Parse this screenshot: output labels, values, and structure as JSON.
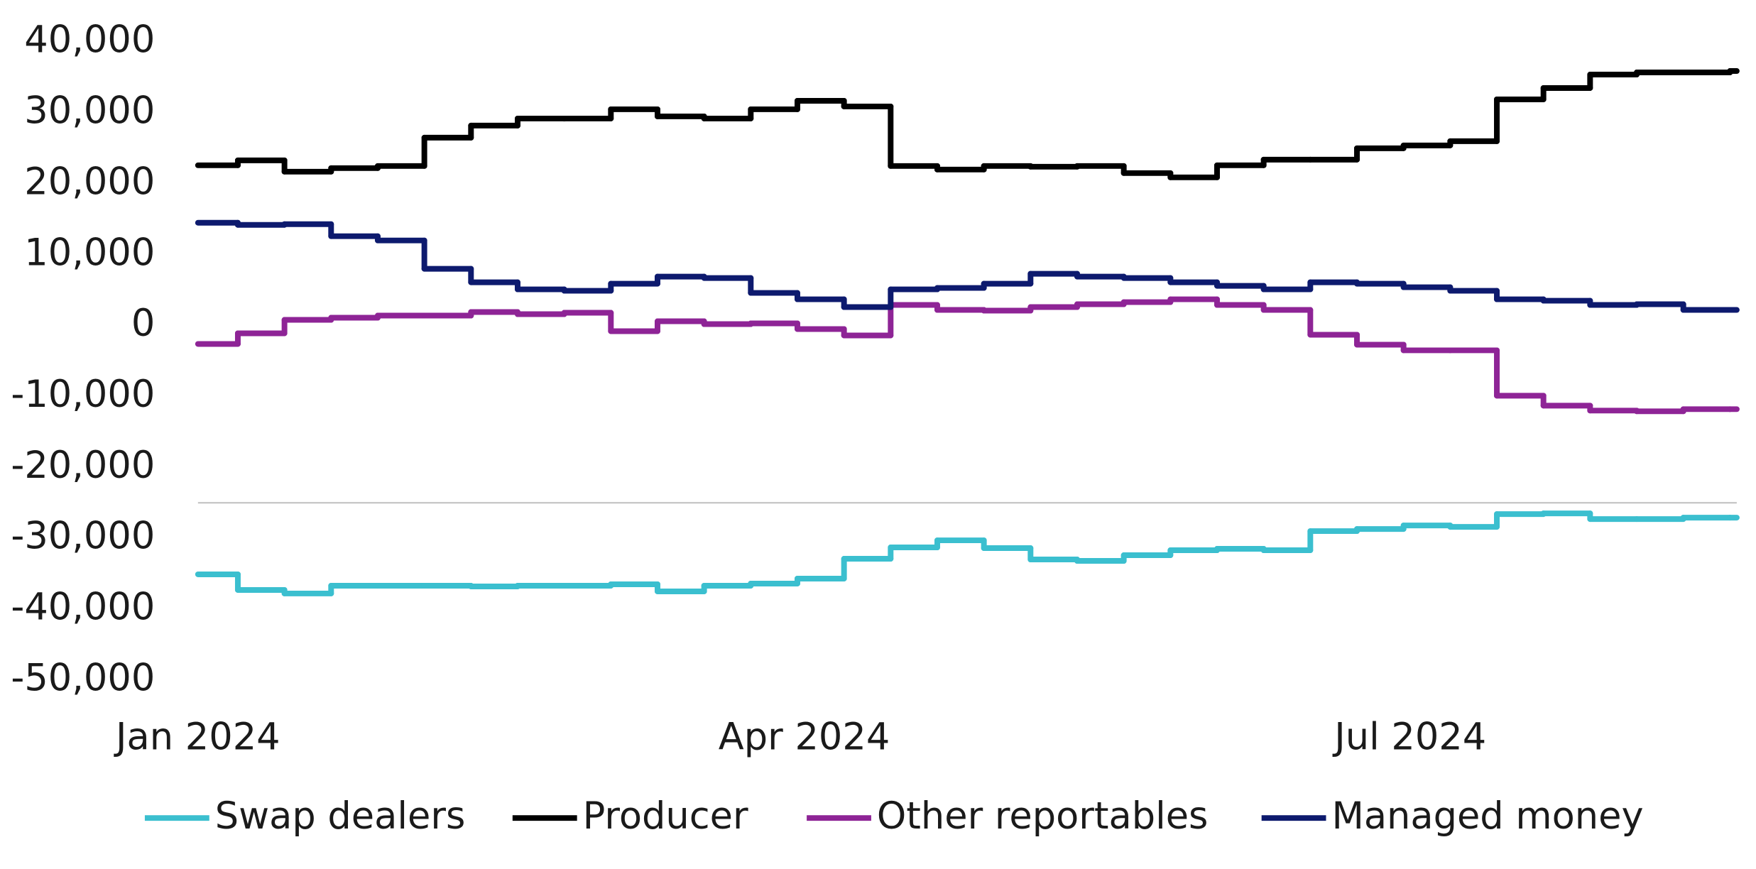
{
  "chart_data": {
    "type": "line",
    "step": true,
    "categories": [
      "Jan 2024",
      null,
      null,
      null,
      null,
      null,
      null,
      null,
      null,
      null,
      null,
      null,
      null,
      "Apr 2024",
      null,
      null,
      null,
      null,
      null,
      null,
      null,
      null,
      null,
      null,
      null,
      null,
      "Jul 2024",
      null,
      null,
      null,
      null,
      null,
      null,
      null
    ],
    "series": [
      {
        "name": "Swap dealers",
        "color": "#3bbfcf",
        "values": [
          -35100,
          -37300,
          -37800,
          -36700,
          -36700,
          -36700,
          -36800,
          -36700,
          -36700,
          -36500,
          -37500,
          -36700,
          -36400,
          -35700,
          -32900,
          -31300,
          -30300,
          -31400,
          -33000,
          -33200,
          -32400,
          -31700,
          -31500,
          -31700,
          -29000,
          -28700,
          -28200,
          -28400,
          -26600,
          -26500,
          -27300,
          -27300,
          -27100,
          -27100
        ]
      },
      {
        "name": "Producer",
        "color": "#000000",
        "values": [
          22600,
          23300,
          21700,
          22200,
          22500,
          26500,
          28200,
          29200,
          29200,
          30500,
          29500,
          29200,
          30500,
          31700,
          30900,
          22500,
          22000,
          22500,
          22400,
          22500,
          21500,
          20900,
          22600,
          23400,
          23400,
          25000,
          25400,
          26000,
          31900,
          33500,
          35400,
          35700,
          35700,
          35900
        ]
      },
      {
        "name": "Other reportables",
        "color": "#8e2496",
        "values": [
          -2600,
          -1100,
          800,
          1100,
          1400,
          1400,
          1900,
          1600,
          1800,
          -800,
          600,
          200,
          300,
          -500,
          -1400,
          2900,
          2200,
          2100,
          2600,
          3000,
          3300,
          3700,
          2900,
          2200,
          -1300,
          -2700,
          -3500,
          -3500,
          -9900,
          -11300,
          -12000,
          -12100,
          -11800,
          -11800
        ]
      },
      {
        "name": "Managed money",
        "color": "#0d1a6e",
        "values": [
          14500,
          14200,
          14300,
          12600,
          12000,
          8000,
          6100,
          5100,
          4900,
          5900,
          6900,
          6700,
          4600,
          3700,
          2600,
          5100,
          5300,
          5900,
          7300,
          6900,
          6700,
          6100,
          5600,
          5100,
          6100,
          5900,
          5400,
          4900,
          3700,
          3500,
          2900,
          3000,
          2200,
          2200
        ]
      }
    ],
    "ylim": [
      -50000,
      40000
    ],
    "yticks": [
      {
        "value": -50000,
        "label": "-50,000"
      },
      {
        "value": -40000,
        "label": "-40,000"
      },
      {
        "value": -30000,
        "label": "-30,000"
      },
      {
        "value": -20000,
        "label": "-20,000"
      },
      {
        "value": -10000,
        "label": "-10,000"
      },
      0,
      {
        "value": 10000,
        "label": "10,000"
      },
      {
        "value": 20000,
        "label": "20,000"
      },
      {
        "value": 30000,
        "label": "30,000"
      },
      {
        "value": 40000,
        "label": "40,000"
      }
    ],
    "reference_line": -25000,
    "grid": false,
    "legend": "bottom"
  }
}
